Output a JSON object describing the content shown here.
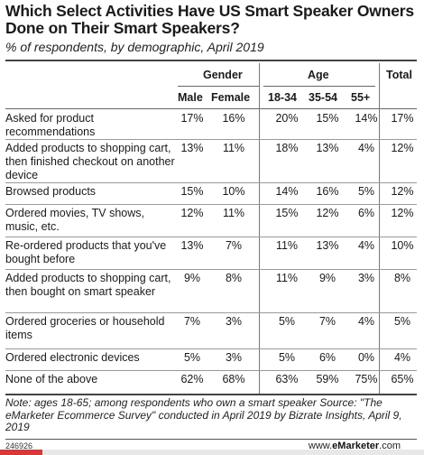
{
  "title": "Which Select Activities Have US Smart Speaker Owners Done on Their Smart Speakers?",
  "subtitle": "% of respondents, by demographic, April 2019",
  "headers": {
    "gender": "Gender",
    "age": "Age",
    "total": "Total",
    "male": "Male",
    "female": "Female",
    "a1": "18-34",
    "a2": "35-54",
    "a3": "55+"
  },
  "rows": [
    {
      "label": "Asked for product recommendations",
      "male": "17%",
      "female": "16%",
      "a1": "20%",
      "a2": "15%",
      "a3": "14%",
      "total": "17%"
    },
    {
      "label": "Added products to shopping cart, then finished checkout on another device",
      "male": "13%",
      "female": "11%",
      "a1": "18%",
      "a2": "13%",
      "a3": "4%",
      "total": "12%"
    },
    {
      "label": "Browsed products",
      "male": "15%",
      "female": "10%",
      "a1": "14%",
      "a2": "16%",
      "a3": "5%",
      "total": "12%"
    },
    {
      "label": "Ordered movies, TV shows, music, etc.",
      "male": "12%",
      "female": "11%",
      "a1": "15%",
      "a2": "12%",
      "a3": "6%",
      "total": "12%"
    },
    {
      "label": "Re-ordered products that you've bought before",
      "male": "13%",
      "female": "7%",
      "a1": "11%",
      "a2": "13%",
      "a3": "4%",
      "total": "10%"
    },
    {
      "label": "Added products to shopping cart, then bought on smart speaker",
      "male": "9%",
      "female": "8%",
      "a1": "11%",
      "a2": "9%",
      "a3": "3%",
      "total": "8%"
    },
    {
      "label": "Ordered groceries or household items",
      "male": "7%",
      "female": "3%",
      "a1": "5%",
      "a2": "7%",
      "a3": "4%",
      "total": "5%"
    },
    {
      "label": "Ordered electronic devices",
      "male": "5%",
      "female": "3%",
      "a1": "5%",
      "a2": "6%",
      "a3": "0%",
      "total": "4%"
    },
    {
      "label": "None of the above",
      "male": "62%",
      "female": "68%",
      "a1": "63%",
      "a2": "59%",
      "a3": "75%",
      "total": "65%"
    }
  ],
  "note": "Note: ages 18-65; among respondents who own a smart speaker Source: \"The eMarketer Ecommerce Survey\" conducted in April 2019 by Bizrate Insights, April 9, 2019",
  "footer": {
    "code": "246926",
    "site_prefix": "www.",
    "site_brand": "eMarketer",
    "site_suffix": ".com"
  },
  "colors": {
    "rule": "#444444",
    "crop_left": "#d8383a",
    "crop_right": "#e8e8e8"
  }
}
